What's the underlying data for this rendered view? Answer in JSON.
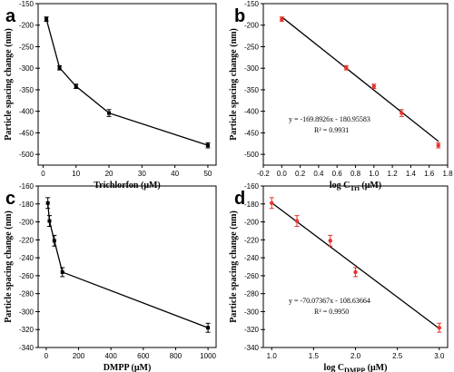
{
  "chart_data": [
    {
      "panel": "a",
      "type": "line",
      "xlabel": "Trichlorfon (μM)",
      "ylabel": "Particle spacing change (nm)",
      "xlim": [
        -1.5,
        52.5
      ],
      "ylim": [
        -525,
        -150
      ],
      "xticks": [
        0,
        10,
        20,
        30,
        40,
        50
      ],
      "yticks": [
        -150,
        -200,
        -250,
        -300,
        -350,
        -400,
        -450,
        -500
      ],
      "x": [
        1,
        5,
        10,
        20,
        50
      ],
      "y": [
        -186,
        -299,
        -342,
        -404,
        -479
      ],
      "err": [
        5,
        5,
        5,
        8,
        6
      ],
      "color": "#000000",
      "marker": "square"
    },
    {
      "panel": "b",
      "type": "scatter",
      "xlabel_main": "log C",
      "xlabel_sub": "Tri",
      "xlabel_tail": " (μM)",
      "ylabel": "Particle spacing change (nm)",
      "xlim": [
        -0.2,
        1.8
      ],
      "ylim": [
        -525,
        -150
      ],
      "xticks": [
        -0.2,
        0.0,
        0.2,
        0.4,
        0.6,
        0.8,
        1.0,
        1.2,
        1.4,
        1.6,
        1.8
      ],
      "xtick_labels": [
        "-0.2",
        "0.0",
        "0.2",
        "0.4",
        "0.6",
        "0.8",
        "1.0",
        "1.2",
        "1.4",
        "1.6",
        "1.8"
      ],
      "yticks": [
        -150,
        -200,
        -250,
        -300,
        -350,
        -400,
        -450,
        -500
      ],
      "x": [
        0,
        0.699,
        1.0,
        1.301,
        1.699
      ],
      "y": [
        -186,
        -299,
        -342,
        -404,
        -479
      ],
      "err": [
        5,
        5,
        5,
        8,
        6
      ],
      "fit": {
        "slope": -169.8926,
        "intercept": -180.95583,
        "x_range": [
          0,
          1.7
        ]
      },
      "equation": "y = -169.8926x - 180.95583",
      "r_squared": "R² = 0.9931",
      "point_color": "#e8332a",
      "line_color": "#000000"
    },
    {
      "panel": "c",
      "type": "line",
      "xlabel": "DMPP (μM)",
      "ylabel": "Particle spacing change (nm)",
      "xlim": [
        -50,
        1050
      ],
      "ylim": [
        -340,
        -160
      ],
      "xticks": [
        0,
        200,
        400,
        600,
        800,
        1000
      ],
      "yticks": [
        -160,
        -180,
        -200,
        -220,
        -240,
        -260,
        -280,
        -300,
        -320,
        -340
      ],
      "x": [
        10,
        20,
        50,
        100,
        1000
      ],
      "y": [
        -179,
        -199,
        -221,
        -256,
        -318
      ],
      "err": [
        6,
        6,
        6,
        5,
        5
      ],
      "color": "#000000",
      "marker": "square"
    },
    {
      "panel": "d",
      "type": "scatter",
      "xlabel_main": "log C",
      "xlabel_sub": "DMPP",
      "xlabel_tail": " (μM)",
      "ylabel": "Particle spacing change (nm)",
      "xlim": [
        0.9,
        3.1
      ],
      "ylim": [
        -340,
        -160
      ],
      "xticks": [
        1.0,
        1.5,
        2.0,
        2.5,
        3.0
      ],
      "xtick_labels": [
        "1.0",
        "1.5",
        "2.0",
        "2.5",
        "3.0"
      ],
      "yticks": [
        -160,
        -180,
        -200,
        -220,
        -240,
        -260,
        -280,
        -300,
        -320,
        -340
      ],
      "x": [
        1.0,
        1.301,
        1.699,
        2.0,
        3.0
      ],
      "y": [
        -179,
        -199,
        -221,
        -256,
        -318
      ],
      "err": [
        6,
        6,
        6,
        5,
        5
      ],
      "fit": {
        "slope": -70.07367,
        "intercept": -108.63664,
        "x_range": [
          1.0,
          3.0
        ]
      },
      "equation": "y = -70.07367x - 108.63664",
      "r_squared": "R² = 0.9950",
      "point_color": "#e8332a",
      "line_color": "#000000"
    }
  ]
}
